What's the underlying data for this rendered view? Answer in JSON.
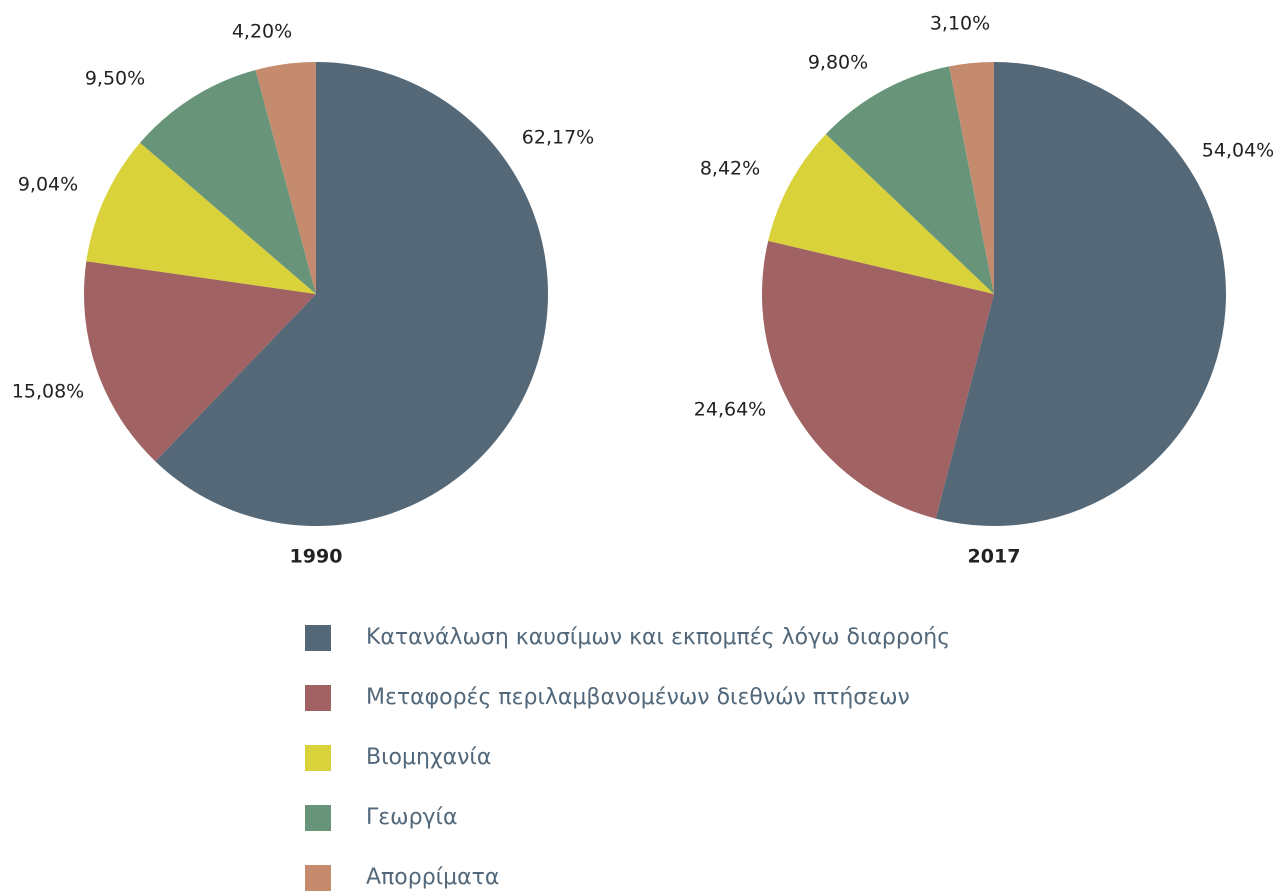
{
  "chart_data": [
    {
      "type": "pie",
      "title": "1990",
      "values": [
        62.17,
        15.08,
        9.04,
        9.5,
        4.2
      ],
      "value_labels": [
        "62,17%",
        "15,08%",
        "9,04%",
        "9,50%",
        "4,20%"
      ]
    },
    {
      "type": "pie",
      "title": "2017",
      "values": [
        54.04,
        24.64,
        8.42,
        9.8,
        3.1
      ],
      "value_labels": [
        "54,04%",
        "24,64%",
        "8,42%",
        "9,80%",
        "3,10%"
      ]
    }
  ],
  "legend": {
    "labels": [
      "Κατανάλωση καυσίμων και εκπομπές λόγω διαρροής",
      "Μεταφορές περιλαμβανομένων διεθνών πτήσεων",
      "Βιομηχανία",
      "Γεωργία",
      "Απορρίματα"
    ],
    "colors": [
      "#546878",
      "#a06262",
      "#d9d23a",
      "#68957a",
      "#c58b6e"
    ]
  }
}
